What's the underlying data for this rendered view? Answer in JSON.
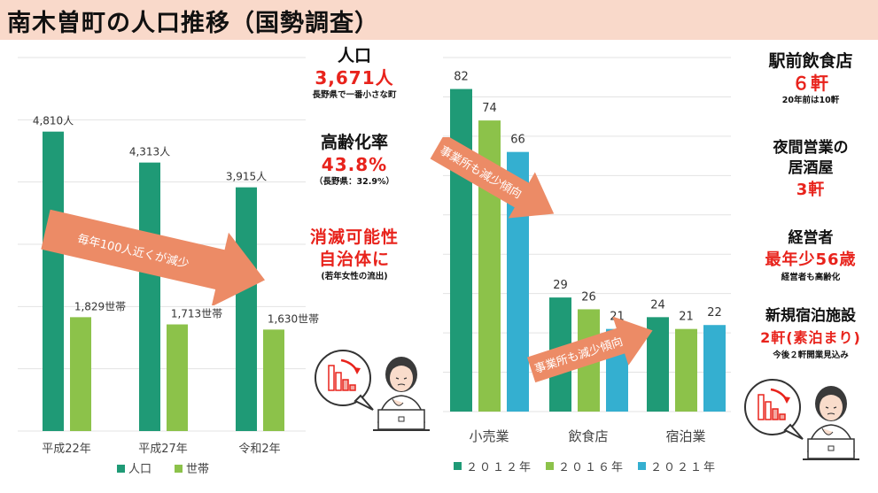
{
  "title": "南木曽町の人口推移（国勢調査）",
  "colors": {
    "population": "#1f9a76",
    "households": "#8cc24a",
    "y2021": "#34afd0",
    "accent_red": "#e8231c",
    "arrow": "#ec8b66",
    "title_bg": "#f9d9ca"
  },
  "chart_data": [
    {
      "type": "bar",
      "categories": [
        "平成22年",
        "平成27年",
        "令和2年"
      ],
      "series": [
        {
          "name": "人口",
          "values": [
            4810,
            4313,
            3915
          ],
          "labels": [
            "4,810人",
            "4,313人",
            "3,915人"
          ]
        },
        {
          "name": "世帯",
          "values": [
            1829,
            1713,
            1630
          ],
          "labels": [
            "1,829世帯",
            "1,713世帯",
            "1,630世帯"
          ]
        }
      ],
      "ylim": [
        0,
        6000
      ],
      "grid": true,
      "legend": "bottom"
    },
    {
      "type": "bar",
      "categories": [
        "小売業",
        "飲食店",
        "宿泊業"
      ],
      "series": [
        {
          "name": "２０１２年",
          "values": [
            82,
            29,
            24
          ]
        },
        {
          "name": "２０１６年",
          "values": [
            74,
            26,
            21
          ]
        },
        {
          "name": "２０２１年",
          "values": [
            66,
            21,
            22
          ]
        }
      ],
      "ylim": [
        0,
        90
      ],
      "grid": true,
      "legend": "bottom"
    }
  ],
  "arrows": {
    "population": "毎年100人近くが減少",
    "business_top": "事業所も減少傾向",
    "business_bottom": "事業所も減少傾向"
  },
  "stats_middle": {
    "population_label": "人口",
    "population_value": "3,671人",
    "population_note": "長野県で一番小さな町",
    "aging_label": "高齢化率",
    "aging_value": "43.8%",
    "aging_note": "（長野県：32.9%）",
    "vanish_line1": "消滅可能性",
    "vanish_line2": "自治体に",
    "vanish_note": "(若年女性の流出)"
  },
  "stats_right": {
    "station_label": "駅前飲食店",
    "station_value": "６軒",
    "station_note": "20年前は10軒",
    "night_line1": "夜間営業の",
    "night_line2": "居酒屋",
    "night_value": "3軒",
    "owner_label": "経営者",
    "owner_value": "最年少56歳",
    "owner_note": "経営者も高齢化",
    "lodging_label": "新規宿泊施設",
    "lodging_value": "2軒(素泊まり)",
    "lodging_note": "今後２軒開業見込み"
  }
}
